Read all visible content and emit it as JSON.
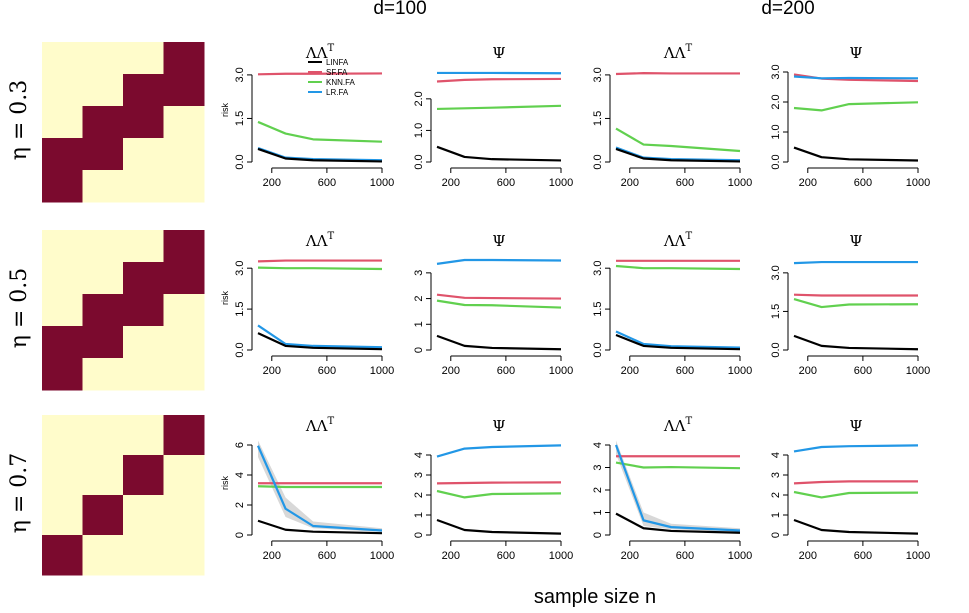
{
  "figure": {
    "column_groups": [
      "d=100",
      "d=200"
    ],
    "row_labels": [
      "η = 0.3",
      "η = 0.5",
      "η = 0.7"
    ],
    "x_axis_label": "sample size n",
    "panel_titles": [
      "ΛΛ",
      "Ψ",
      "ΛΛ",
      "Ψ"
    ],
    "panel_title_superscripts": [
      "T",
      "",
      "T",
      ""
    ],
    "y_axis_label": "risk",
    "colors": {
      "heatmap_on": "#7B0A2E",
      "heatmap_off": "#FFFCCB",
      "band": "#D8D8D8"
    }
  },
  "patterns": [
    {
      "eta": "η = 0.3",
      "grid": [
        [
          0,
          0,
          0,
          1
        ],
        [
          0,
          0,
          1,
          1
        ],
        [
          0,
          1,
          1,
          0
        ],
        [
          1,
          1,
          0,
          0
        ],
        [
          1,
          0,
          0,
          0
        ]
      ]
    },
    {
      "eta": "η = 0.5",
      "grid": [
        [
          0,
          0,
          0,
          1
        ],
        [
          0,
          0,
          1,
          1
        ],
        [
          0,
          1,
          1,
          0
        ],
        [
          1,
          1,
          0,
          0
        ],
        [
          1,
          0,
          0,
          0
        ]
      ]
    },
    {
      "eta": "η = 0.7",
      "grid": [
        [
          0,
          0,
          0,
          1
        ],
        [
          0,
          0,
          1,
          0
        ],
        [
          0,
          1,
          0,
          0
        ],
        [
          1,
          0,
          0,
          0
        ]
      ]
    }
  ],
  "chart_data": {
    "type": "line",
    "x": [
      100,
      300,
      500,
      1000
    ],
    "x_ticks": [
      200,
      600,
      1000
    ],
    "xlim": [
      100,
      1000
    ],
    "legend": {
      "placement": "top-right of first panel",
      "entries": [
        "LINFA",
        "SF.FA",
        "KNN.FA",
        "LR.FA"
      ]
    },
    "series_colors": {
      "LINFA": "#000000",
      "SF.FA": "#DF536B",
      "KNN.FA": "#61D04F",
      "LR.FA": "#2297E6"
    },
    "panels": [
      {
        "row": 0,
        "col": 0,
        "ylim": [
          0,
          3.1
        ],
        "y_ticks": [
          0,
          1.5,
          3
        ],
        "y_tick_labels": [
          "0.0",
          "1.5",
          "3.0"
        ],
        "series": [
          {
            "name": "LINFA",
            "values": [
              0.45,
              0.12,
              0.06,
              0.02
            ]
          },
          {
            "name": "SF.FA",
            "values": [
              3.02,
              3.04,
              3.04,
              3.05
            ]
          },
          {
            "name": "KNN.FA",
            "values": [
              1.38,
              0.98,
              0.78,
              0.7
            ]
          },
          {
            "name": "LR.FA",
            "values": [
              0.48,
              0.15,
              0.1,
              0.06
            ]
          }
        ]
      },
      {
        "row": 0,
        "col": 1,
        "ylim": [
          0,
          2.85
        ],
        "y_ticks": [
          0,
          1,
          2
        ],
        "y_tick_labels": [
          "0.0",
          "1.0",
          "2.0"
        ],
        "series": [
          {
            "name": "LINFA",
            "values": [
              0.48,
              0.16,
              0.09,
              0.05
            ]
          },
          {
            "name": "SF.FA",
            "values": [
              2.55,
              2.6,
              2.62,
              2.63
            ]
          },
          {
            "name": "KNN.FA",
            "values": [
              1.68,
              1.7,
              1.72,
              1.78
            ]
          },
          {
            "name": "LR.FA",
            "values": [
              2.82,
              2.82,
              2.82,
              2.81
            ]
          }
        ]
      },
      {
        "row": 0,
        "col": 2,
        "ylim": [
          0,
          3.1
        ],
        "y_ticks": [
          0,
          1.5,
          3
        ],
        "y_tick_labels": [
          "0.0",
          "1.5",
          "3.0"
        ],
        "series": [
          {
            "name": "LINFA",
            "values": [
              0.45,
              0.12,
              0.06,
              0.02
            ]
          },
          {
            "name": "SF.FA",
            "values": [
              3.03,
              3.06,
              3.05,
              3.05
            ]
          },
          {
            "name": "KNN.FA",
            "values": [
              1.15,
              0.6,
              0.55,
              0.38
            ]
          },
          {
            "name": "LR.FA",
            "values": [
              0.5,
              0.15,
              0.1,
              0.06
            ]
          }
        ]
      },
      {
        "row": 0,
        "col": 3,
        "ylim": [
          0,
          3.0
        ],
        "y_ticks": [
          0,
          1,
          2,
          3
        ],
        "y_tick_labels": [
          "0.0",
          "1.0",
          "2.0",
          "3.0"
        ],
        "series": [
          {
            "name": "LINFA",
            "values": [
              0.48,
              0.16,
              0.09,
              0.05
            ]
          },
          {
            "name": "SF.FA",
            "values": [
              2.92,
              2.78,
              2.74,
              2.7
            ]
          },
          {
            "name": "KNN.FA",
            "values": [
              1.8,
              1.72,
              1.93,
              1.99
            ]
          },
          {
            "name": "LR.FA",
            "values": [
              2.85,
              2.79,
              2.8,
              2.79
            ]
          }
        ]
      },
      {
        "row": 1,
        "col": 0,
        "ylim": [
          0,
          3.3
        ],
        "y_ticks": [
          0,
          1.5,
          3
        ],
        "y_tick_labels": [
          "0.0",
          "1.5",
          "3.0"
        ],
        "series": [
          {
            "name": "LINFA",
            "values": [
              0.62,
              0.15,
              0.08,
              0.03
            ]
          },
          {
            "name": "SF.FA",
            "values": [
              3.25,
              3.28,
              3.28,
              3.28
            ]
          },
          {
            "name": "KNN.FA",
            "values": [
              3.02,
              3.0,
              3.0,
              2.97
            ]
          },
          {
            "name": "LR.FA",
            "values": [
              0.9,
              0.22,
              0.15,
              0.1
            ]
          }
        ]
      },
      {
        "row": 1,
        "col": 1,
        "ylim": [
          0,
          3.5
        ],
        "y_ticks": [
          0,
          1,
          2,
          3
        ],
        "y_tick_labels": [
          "0",
          "1",
          "2",
          "3"
        ],
        "series": [
          {
            "name": "LINFA",
            "values": [
              0.55,
              0.16,
              0.08,
              0.03
            ]
          },
          {
            "name": "SF.FA",
            "values": [
              2.15,
              2.03,
              2.02,
              2.0
            ]
          },
          {
            "name": "KNN.FA",
            "values": [
              1.92,
              1.75,
              1.74,
              1.65
            ]
          },
          {
            "name": "LR.FA",
            "values": [
              3.35,
              3.5,
              3.5,
              3.48
            ]
          }
        ]
      },
      {
        "row": 1,
        "col": 2,
        "ylim": [
          0,
          3.3
        ],
        "y_ticks": [
          0,
          1.5,
          3
        ],
        "y_tick_labels": [
          "0.0",
          "1.5",
          "3.0"
        ],
        "series": [
          {
            "name": "LINFA",
            "values": [
              0.55,
              0.15,
              0.08,
              0.03
            ]
          },
          {
            "name": "SF.FA",
            "values": [
              3.27,
              3.27,
              3.27,
              3.27
            ]
          },
          {
            "name": "KNN.FA",
            "values": [
              3.08,
              3.0,
              3.0,
              2.97
            ]
          },
          {
            "name": "LR.FA",
            "values": [
              0.68,
              0.22,
              0.14,
              0.09
            ]
          }
        ]
      },
      {
        "row": 1,
        "col": 3,
        "ylim": [
          0,
          3.5
        ],
        "y_ticks": [
          0,
          1.5,
          3
        ],
        "y_tick_labels": [
          "0.0",
          "1.5",
          "3.0"
        ],
        "series": [
          {
            "name": "LINFA",
            "values": [
              0.55,
              0.16,
              0.08,
              0.03
            ]
          },
          {
            "name": "SF.FA",
            "values": [
              2.15,
              2.12,
              2.12,
              2.12
            ]
          },
          {
            "name": "KNN.FA",
            "values": [
              1.98,
              1.67,
              1.77,
              1.78
            ]
          },
          {
            "name": "LR.FA",
            "values": [
              3.38,
              3.42,
              3.42,
              3.42
            ]
          }
        ]
      },
      {
        "row": 2,
        "col": 0,
        "ylim": [
          0,
          6
        ],
        "y_ticks": [
          0,
          2,
          4,
          6
        ],
        "y_tick_labels": [
          "0",
          "2",
          "4",
          "6"
        ],
        "series": [
          {
            "name": "LINFA",
            "values": [
              0.95,
              0.35,
              0.22,
              0.12
            ]
          },
          {
            "name": "SF.FA",
            "values": [
              3.45,
              3.45,
              3.45,
              3.45
            ]
          },
          {
            "name": "KNN.FA",
            "values": [
              3.25,
              3.2,
              3.2,
              3.2
            ]
          },
          {
            "name": "LR.FA",
            "values": [
              5.95,
              1.75,
              0.6,
              0.3
            ],
            "band": [
              [
                5.2,
                6.3
              ],
              [
                1.2,
                2.5
              ],
              [
                0.45,
                0.9
              ],
              [
                0.2,
                0.45
              ]
            ]
          }
        ]
      },
      {
        "row": 2,
        "col": 1,
        "ylim": [
          0,
          4.5
        ],
        "y_ticks": [
          0,
          1,
          2,
          3,
          4
        ],
        "y_tick_labels": [
          "0",
          "1",
          "2",
          "3",
          "4"
        ],
        "series": [
          {
            "name": "LINFA",
            "values": [
              0.75,
              0.25,
              0.15,
              0.07
            ]
          },
          {
            "name": "SF.FA",
            "values": [
              2.58,
              2.6,
              2.62,
              2.63
            ]
          },
          {
            "name": "KNN.FA",
            "values": [
              2.2,
              1.88,
              2.05,
              2.08
            ]
          },
          {
            "name": "LR.FA",
            "values": [
              3.92,
              4.32,
              4.4,
              4.48
            ]
          }
        ]
      },
      {
        "row": 2,
        "col": 2,
        "ylim": [
          0,
          4
        ],
        "y_ticks": [
          0,
          1,
          2,
          3,
          4
        ],
        "y_tick_labels": [
          "0",
          "1",
          "2",
          "3",
          "4"
        ],
        "series": [
          {
            "name": "LINFA",
            "values": [
              0.95,
              0.3,
              0.18,
              0.1
            ]
          },
          {
            "name": "SF.FA",
            "values": [
              3.5,
              3.5,
              3.5,
              3.5
            ]
          },
          {
            "name": "KNN.FA",
            "values": [
              3.22,
              3.0,
              3.02,
              2.97
            ]
          },
          {
            "name": "LR.FA",
            "values": [
              4.0,
              0.65,
              0.35,
              0.2
            ],
            "band": [
              [
                3.6,
                4.2
              ],
              [
                0.4,
                1.0
              ],
              [
                0.25,
                0.5
              ],
              [
                0.12,
                0.3
              ]
            ]
          }
        ]
      },
      {
        "row": 2,
        "col": 3,
        "ylim": [
          0,
          4.5
        ],
        "y_ticks": [
          0,
          1,
          2,
          3,
          4
        ],
        "y_tick_labels": [
          "0",
          "1",
          "2",
          "3",
          "4"
        ],
        "series": [
          {
            "name": "LINFA",
            "values": [
              0.75,
              0.25,
              0.15,
              0.07
            ]
          },
          {
            "name": "SF.FA",
            "values": [
              2.58,
              2.65,
              2.68,
              2.68
            ]
          },
          {
            "name": "KNN.FA",
            "values": [
              2.15,
              1.88,
              2.1,
              2.12
            ]
          },
          {
            "name": "LR.FA",
            "values": [
              4.18,
              4.4,
              4.44,
              4.48
            ]
          }
        ]
      }
    ]
  }
}
